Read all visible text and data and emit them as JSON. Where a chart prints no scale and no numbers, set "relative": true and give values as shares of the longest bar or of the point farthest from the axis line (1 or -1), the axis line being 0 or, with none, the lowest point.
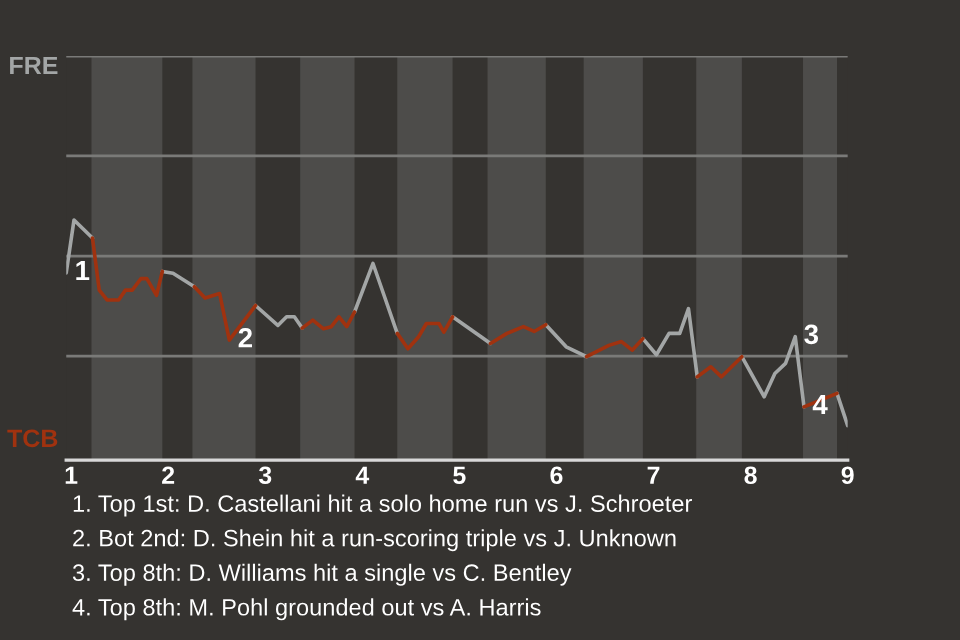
{
  "chart_data": {
    "type": "line",
    "relative": true,
    "xlim": [
      0.95,
      9
    ],
    "xticks": [
      1,
      2,
      3,
      4,
      5,
      6,
      7,
      8,
      9
    ],
    "series": [
      {
        "name": "FRE",
        "color": "#a3a6a6",
        "x": [
          0.95,
          1.03,
          1.22,
          null,
          1.94,
          2.05,
          2.27,
          null,
          2.9,
          3.13,
          3.22,
          3.3,
          3.38,
          null,
          3.92,
          4.11,
          4.36,
          null,
          4.93,
          5.27,
          5.32,
          null,
          5.89,
          6.1,
          6.31,
          null,
          6.89,
          7.03,
          7.16,
          7.27,
          7.36,
          7.45,
          null,
          7.91,
          8.14,
          8.25,
          8.36,
          8.46,
          8.55,
          null,
          8.89,
          9.0
        ],
        "values": [
          0.78,
          1.0,
          0.925,
          null,
          0.786,
          0.778,
          0.722,
          null,
          0.644,
          0.561,
          0.597,
          0.597,
          0.55,
          null,
          0.617,
          0.819,
          0.528,
          null,
          0.597,
          0.5,
          0.486,
          null,
          0.564,
          0.472,
          0.431,
          null,
          0.506,
          0.439,
          0.528,
          0.528,
          0.631,
          0.347,
          null,
          0.431,
          0.264,
          0.361,
          0.403,
          0.514,
          0.222,
          null,
          0.278,
          0.144
        ]
      },
      {
        "name": "TCB",
        "color": "#a0320f",
        "x": [
          1.22,
          1.29,
          1.37,
          1.49,
          1.56,
          1.63,
          1.72,
          1.78,
          1.88,
          1.94,
          null,
          2.27,
          2.38,
          2.53,
          2.63,
          2.9,
          null,
          3.38,
          3.49,
          3.6,
          3.68,
          3.76,
          3.84,
          3.92,
          null,
          4.36,
          4.47,
          4.58,
          4.66,
          4.79,
          4.84,
          4.93,
          null,
          5.32,
          5.49,
          5.66,
          5.77,
          5.89,
          null,
          6.31,
          6.54,
          6.67,
          6.78,
          6.89,
          null,
          7.45,
          7.59,
          7.7,
          7.91,
          null,
          8.55,
          8.89
        ],
        "values": [
          0.925,
          0.708,
          0.667,
          0.667,
          0.708,
          0.708,
          0.756,
          0.756,
          0.686,
          0.786,
          null,
          0.722,
          0.675,
          0.694,
          0.5,
          0.644,
          null,
          0.55,
          0.583,
          0.547,
          0.556,
          0.597,
          0.556,
          0.617,
          null,
          0.528,
          0.464,
          0.514,
          0.569,
          0.569,
          0.533,
          0.597,
          null,
          0.486,
          0.528,
          0.556,
          0.536,
          0.564,
          null,
          0.431,
          0.478,
          0.494,
          0.458,
          0.506,
          null,
          0.347,
          0.389,
          0.347,
          0.431,
          null,
          0.222,
          0.278
        ]
      }
    ],
    "bands": [
      {
        "axis": "x",
        "from": 1.21,
        "to": 1.94,
        "color": "#4d4c4a"
      },
      {
        "axis": "x",
        "from": 2.25,
        "to": 2.9,
        "color": "#4d4c4a"
      },
      {
        "axis": "x",
        "from": 3.36,
        "to": 3.92,
        "color": "#4d4c4a"
      },
      {
        "axis": "x",
        "from": 4.36,
        "to": 4.93,
        "color": "#4d4c4a"
      },
      {
        "axis": "x",
        "from": 5.29,
        "to": 5.89,
        "color": "#4d4c4a"
      },
      {
        "axis": "x",
        "from": 6.28,
        "to": 6.89,
        "color": "#4d4c4a"
      },
      {
        "axis": "x",
        "from": 7.44,
        "to": 7.91,
        "color": "#4d4c4a"
      },
      {
        "axis": "x",
        "from": 8.54,
        "to": 8.89,
        "color": "#4d4c4a"
      }
    ],
    "ref_lines": [
      {
        "axis": "y",
        "value": 0.433,
        "color": "#7a7a78"
      },
      {
        "axis": "y",
        "value": 0.85,
        "color": "#7a7a78"
      },
      {
        "axis": "y",
        "value": 1.267,
        "color": "#7a7a78"
      },
      {
        "axis": "y",
        "value": 1.683,
        "color": "#7a7a78"
      }
    ],
    "annotations": [
      {
        "text": "1",
        "x": 0.95,
        "y": 0.78
      },
      {
        "text": "2",
        "x": 2.63,
        "y": 0.5
      },
      {
        "text": "3",
        "x": 8.46,
        "y": 0.514
      },
      {
        "text": "4",
        "x": 8.55,
        "y": 0.222
      },
      "1. Top 1st: D. Castellani hit a solo home run vs J. Schroeter",
      "2. Bot 2nd: D. Shein hit a run-scoring triple vs J. Unknown",
      "3. Top 8th: D. Williams hit a single vs C. Bentley",
      "4. Top 8th: M. Pohl grounded out vs A. Harris"
    ]
  }
}
